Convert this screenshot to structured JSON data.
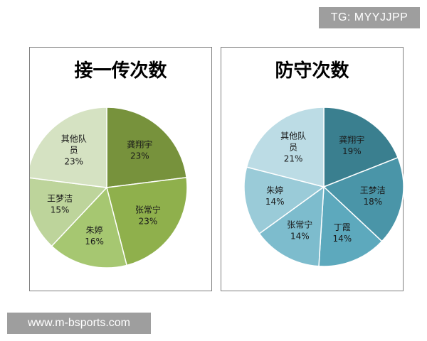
{
  "watermarks": {
    "top": "TG: MYYJJPP",
    "bottom": "www.m-bsports.com"
  },
  "chart_data": [
    {
      "type": "pie",
      "title": "接一传次数",
      "slices": [
        {
          "name": "龚翔宇",
          "value": 23,
          "label": "23%",
          "color": "#77923c"
        },
        {
          "name": "张常宁",
          "value": 23,
          "label": "23%",
          "color": "#8fb04c"
        },
        {
          "name": "朱婷",
          "value": 16,
          "label": "16%",
          "color": "#a6c771"
        },
        {
          "name": "王梦洁",
          "value": 15,
          "label": "15%",
          "color": "#bdd49b"
        },
        {
          "name": "其他队员",
          "value": 23,
          "label": "23%",
          "color": "#d5e2c2"
        }
      ],
      "start_angle_deg": 0,
      "direction": "clockwise"
    },
    {
      "type": "pie",
      "title": "防守次数",
      "slices": [
        {
          "name": "龚翔宇",
          "value": 19,
          "label": "19%",
          "color": "#3a7f8f"
        },
        {
          "name": "王梦洁",
          "value": 18,
          "label": "18%",
          "color": "#4a95a8"
        },
        {
          "name": "丁霞",
          "value": 14,
          "label": "14%",
          "color": "#5da9bd"
        },
        {
          "name": "张常宁",
          "value": 14,
          "label": "14%",
          "color": "#7dbccd"
        },
        {
          "name": "朱婷",
          "value": 14,
          "label": "14%",
          "color": "#9acbd8"
        },
        {
          "name": "其他队员",
          "value": 21,
          "label": "21%",
          "color": "#bcdce5"
        }
      ],
      "start_angle_deg": 0,
      "direction": "clockwise"
    }
  ]
}
